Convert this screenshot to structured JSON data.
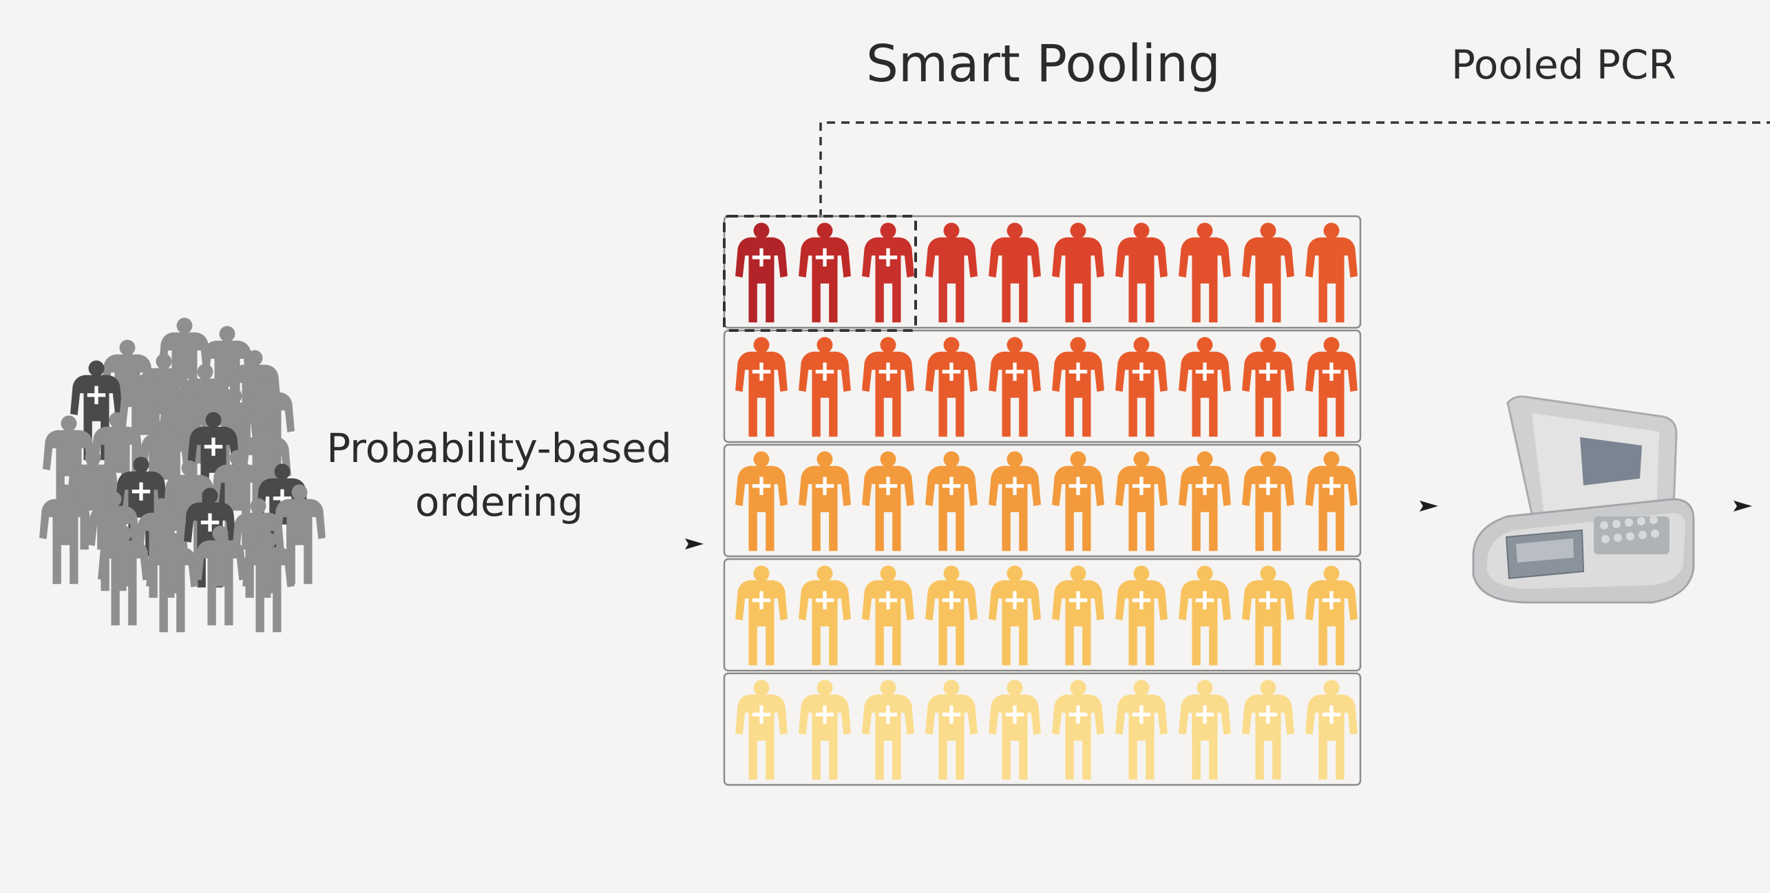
{
  "header": {
    "smart_pooling_label": "Smart Pooling",
    "pooled_pcr_label": "Pooled PCR"
  },
  "ordering": {
    "label_line1": "Probability-based",
    "label_line2": "ordering"
  },
  "grid": {
    "rows": 5,
    "cols": 10,
    "highlighted_pool_size": 3,
    "positive_marked_in_first_row": 3,
    "row_colors": [
      "#c8302c",
      "#e85c2c",
      "#f39a3c",
      "#f8c35e",
      "#fbdc8c"
    ],
    "first_row_gradient": [
      "#b32428",
      "#bd2a28",
      "#c8302c",
      "#d23a2c",
      "#d8402c",
      "#dc442c",
      "#e04a2c",
      "#e2502c",
      "#e4552c",
      "#e65a2c"
    ]
  },
  "crowd": {
    "gray_color": "#8f8f8f",
    "dark_color": "#4a4a4a",
    "positive_count": 5
  },
  "colors": {
    "background": "#f5f4f2",
    "grid_border": "#8a8a8a",
    "dashed_line": "#333333",
    "arrow": "#1e1e1e",
    "pcr_body": "#c9cacb",
    "pcr_dark": "#7b8591"
  },
  "icons": [
    "person-icon",
    "arrow-icon",
    "pcr-machine-icon"
  ]
}
